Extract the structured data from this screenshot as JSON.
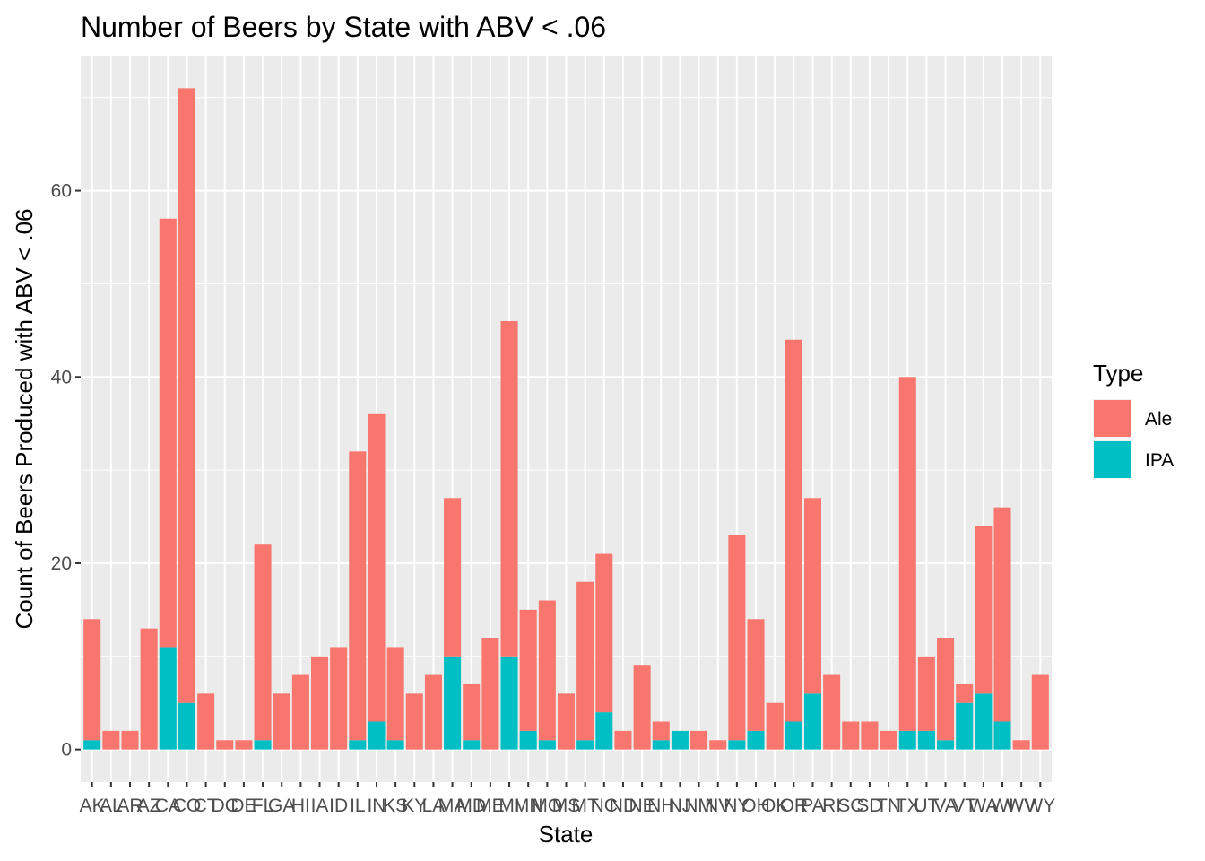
{
  "chart_data": {
    "type": "bar",
    "stacked": true,
    "title": "Number of Beers by State with ABV < .06",
    "xlabel": "State",
    "ylabel": "Count of Beers Produced with ABV < .06",
    "ylim": [
      -3.5,
      74.5
    ],
    "yticks": [
      0,
      20,
      40,
      60
    ],
    "grid": true,
    "legend_placement": "right",
    "legend_title": "Type",
    "categories": [
      "AK",
      "AL",
      "AR",
      "AZ",
      "CA",
      "CO",
      "CT",
      "DC",
      "DE",
      "FL",
      "GA",
      "HI",
      "IA",
      "ID",
      "IL",
      "IN",
      "KS",
      "KY",
      "LA",
      "MA",
      "MD",
      "ME",
      "MI",
      "MN",
      "MO",
      "MS",
      "MT",
      "NC",
      "ND",
      "NE",
      "NH",
      "NJ",
      "NM",
      "NV",
      "NY",
      "OH",
      "OK",
      "OR",
      "PA",
      "RI",
      "SC",
      "SD",
      "TN",
      "TX",
      "UT",
      "VA",
      "VT",
      "WA",
      "WI",
      "WV",
      "WY"
    ],
    "series": [
      {
        "name": "Ale",
        "color": "#F8766D",
        "values": [
          13,
          2,
          2,
          13,
          46,
          66,
          6,
          1,
          1,
          21,
          6,
          8,
          10,
          11,
          31,
          33,
          10,
          6,
          8,
          17,
          6,
          12,
          36,
          13,
          15,
          6,
          17,
          17,
          2,
          9,
          2,
          0,
          2,
          1,
          22,
          12,
          5,
          41,
          21,
          8,
          3,
          3,
          2,
          38,
          8,
          11,
          2,
          18,
          23,
          1,
          8
        ]
      },
      {
        "name": "IPA",
        "color": "#00BFC4",
        "values": [
          1,
          0,
          0,
          0,
          11,
          5,
          0,
          0,
          0,
          1,
          0,
          0,
          0,
          0,
          1,
          3,
          1,
          0,
          0,
          10,
          1,
          0,
          10,
          2,
          1,
          0,
          1,
          4,
          0,
          0,
          1,
          2,
          0,
          0,
          1,
          2,
          0,
          3,
          6,
          0,
          0,
          0,
          0,
          2,
          2,
          1,
          5,
          6,
          3,
          0,
          0
        ]
      }
    ]
  }
}
